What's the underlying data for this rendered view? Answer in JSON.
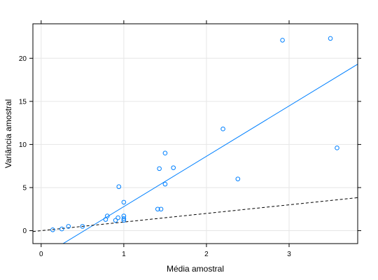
{
  "chart_data": {
    "type": "scatter",
    "title": "",
    "xlabel": "Média amostral",
    "ylabel": "Variância amostral",
    "xlim": [
      -0.1,
      3.83
    ],
    "ylim": [
      -1.5,
      24.0
    ],
    "x_ticks": [
      0,
      1,
      2,
      3
    ],
    "y_ticks": [
      0,
      5,
      10,
      15,
      20
    ],
    "x_tick_labels": [
      "0",
      "1",
      "2",
      "3"
    ],
    "y_tick_labels": [
      "0",
      "5",
      "10",
      "15",
      "20"
    ],
    "grid": true,
    "legend": "none",
    "points": [
      {
        "x": 0.14,
        "y": 0.1
      },
      {
        "x": 0.25,
        "y": 0.2
      },
      {
        "x": 0.33,
        "y": 0.5
      },
      {
        "x": 0.5,
        "y": 0.5
      },
      {
        "x": 0.78,
        "y": 1.3
      },
      {
        "x": 0.8,
        "y": 1.7
      },
      {
        "x": 0.9,
        "y": 1.2
      },
      {
        "x": 0.93,
        "y": 1.5
      },
      {
        "x": 0.94,
        "y": 5.1
      },
      {
        "x": 1.0,
        "y": 1.2
      },
      {
        "x": 1.0,
        "y": 1.4
      },
      {
        "x": 1.0,
        "y": 1.7
      },
      {
        "x": 1.0,
        "y": 3.3
      },
      {
        "x": 1.41,
        "y": 2.5
      },
      {
        "x": 1.43,
        "y": 7.2
      },
      {
        "x": 1.45,
        "y": 2.5
      },
      {
        "x": 1.5,
        "y": 5.4
      },
      {
        "x": 1.5,
        "y": 9.0
      },
      {
        "x": 1.6,
        "y": 7.3
      },
      {
        "x": 2.2,
        "y": 11.8
      },
      {
        "x": 2.38,
        "y": 6.0
      },
      {
        "x": 2.92,
        "y": 22.1
      },
      {
        "x": 3.5,
        "y": 22.3
      },
      {
        "x": 3.58,
        "y": 9.6
      }
    ],
    "lines": [
      {
        "style": "solid",
        "intercept": -3.05,
        "slope": 5.84
      },
      {
        "style": "dashed",
        "intercept": 0.0,
        "slope": 1.0
      }
    ],
    "colors": {
      "points": "#0080ff",
      "fit_line": "#0080ff",
      "reference_line": "#000000",
      "grid": "#e6e6e6",
      "axis": "#000000"
    }
  }
}
